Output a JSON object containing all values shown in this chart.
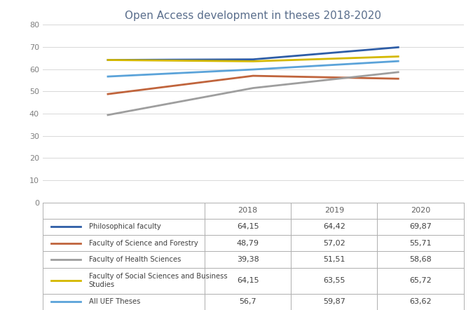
{
  "title": "Open Access development in theses 2018-2020",
  "years": [
    2018,
    2019,
    2020
  ],
  "series": [
    {
      "name": "Philosophical faculty",
      "values": [
        64.15,
        64.42,
        69.87
      ],
      "color": "#2E5DA6",
      "linewidth": 2.0
    },
    {
      "name": "Faculty of Science and Forestry",
      "values": [
        48.79,
        57.02,
        55.71
      ],
      "color": "#C0643C",
      "linewidth": 2.0
    },
    {
      "name": "Faculty of Health Sciences",
      "values": [
        39.38,
        51.51,
        58.68
      ],
      "color": "#9E9E9E",
      "linewidth": 2.0
    },
    {
      "name": "Faculty of Social Sciences and Business\nStudies",
      "values": [
        64.15,
        63.55,
        65.72
      ],
      "color": "#D4B800",
      "linewidth": 2.0
    },
    {
      "name": "All UEF Theses",
      "values": [
        56.7,
        59.87,
        63.62
      ],
      "color": "#5BA3D9",
      "linewidth": 2.0
    }
  ],
  "ylim": [
    0,
    80
  ],
  "yticks": [
    0,
    10,
    20,
    30,
    40,
    50,
    60,
    70,
    80
  ],
  "table_rows": [
    [
      "64,15",
      "64,42",
      "69,87"
    ],
    [
      "48,79",
      "57,02",
      "55,71"
    ],
    [
      "39,38",
      "51,51",
      "58,68"
    ],
    [
      "64,15",
      "63,55",
      "65,72"
    ],
    [
      "56,7",
      "59,87",
      "63,62"
    ]
  ],
  "col_labels": [
    "2018",
    "2019",
    "2020"
  ],
  "legend_names": [
    "Philosophical faculty",
    "Faculty of Science and Forestry",
    "Faculty of Health Sciences",
    "Faculty of Social Sciences and Business\nStudies",
    "All UEF Theses"
  ],
  "title_color": "#5A6E8C",
  "title_fontsize": 11,
  "axis_label_color": "#808080",
  "grid_color": "#D8D8D8",
  "table_text_color": "#404040",
  "table_header_color": "#606060"
}
